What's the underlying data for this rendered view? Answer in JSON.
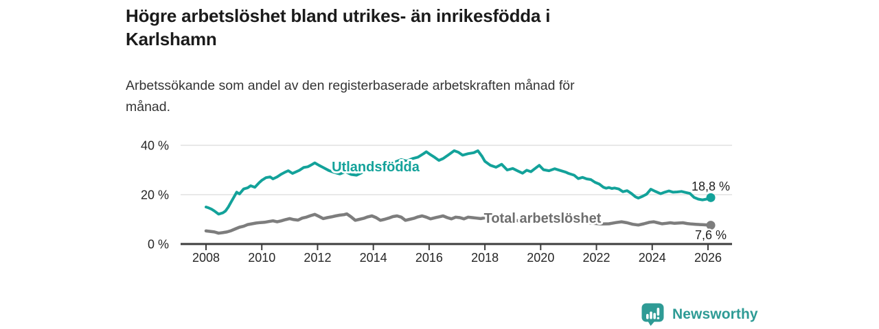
{
  "header": {
    "title_lines": [
      "Högre arbetslöshet bland utrikes- än inrikesfödda i",
      "Karlshamn"
    ],
    "subtitle_lines": [
      "Arbetssökande som andel av den registerbaserade arbetskraften månad för",
      "månad."
    ]
  },
  "chart_data": {
    "type": "line",
    "title": "Högre arbetslöshet bland utrikes- än inrikesfödda i Karlshamn",
    "subtitle": "Arbetssökande som andel av den registerbaserade arbetskraften månad för månad.",
    "xlabel": "",
    "ylabel": "",
    "y_unit": "%",
    "x_range_years": [
      2008,
      2026.1
    ],
    "ylim": [
      0,
      44
    ],
    "grid": "horizontal",
    "legend_position": "inline-labels",
    "y_ticks": [
      {
        "value": 0,
        "label": "0 %"
      },
      {
        "value": 20,
        "label": "20 %"
      },
      {
        "value": 40,
        "label": "40 %"
      }
    ],
    "x_ticks": [
      {
        "value": 2008,
        "label": "2008"
      },
      {
        "value": 2010,
        "label": "2010"
      },
      {
        "value": 2012,
        "label": "2012"
      },
      {
        "value": 2014,
        "label": "2014"
      },
      {
        "value": 2016,
        "label": "2016"
      },
      {
        "value": 2018,
        "label": "2018"
      },
      {
        "value": 2020,
        "label": "2020"
      },
      {
        "value": 2022,
        "label": "2022"
      },
      {
        "value": 2024,
        "label": "2024"
      },
      {
        "value": 2026,
        "label": "2026"
      }
    ],
    "series": [
      {
        "name": "Utlandsfödda",
        "color": "#13a29a",
        "label_color": "#13a29a",
        "line_width": 4,
        "end_value": 18.8,
        "end_label": "18,8 %",
        "points": [
          [
            2008.0,
            15.0
          ],
          [
            2008.1,
            14.6
          ],
          [
            2008.2,
            14.1
          ],
          [
            2008.3,
            13.4
          ],
          [
            2008.45,
            12.1
          ],
          [
            2008.6,
            12.6
          ],
          [
            2008.7,
            13.4
          ],
          [
            2008.8,
            15.0
          ],
          [
            2008.9,
            17.0
          ],
          [
            2009.0,
            19.0
          ],
          [
            2009.1,
            21.0
          ],
          [
            2009.2,
            20.3
          ],
          [
            2009.35,
            22.3
          ],
          [
            2009.5,
            22.8
          ],
          [
            2009.6,
            23.6
          ],
          [
            2009.75,
            23.0
          ],
          [
            2009.9,
            24.8
          ],
          [
            2010.0,
            25.8
          ],
          [
            2010.15,
            26.9
          ],
          [
            2010.3,
            27.2
          ],
          [
            2010.4,
            26.4
          ],
          [
            2010.55,
            27.2
          ],
          [
            2010.7,
            28.3
          ],
          [
            2010.85,
            29.2
          ],
          [
            2010.95,
            29.7
          ],
          [
            2011.1,
            28.6
          ],
          [
            2011.2,
            29.1
          ],
          [
            2011.35,
            29.9
          ],
          [
            2011.5,
            31.0
          ],
          [
            2011.65,
            31.3
          ],
          [
            2011.75,
            31.9
          ],
          [
            2011.9,
            32.9
          ],
          [
            2012.05,
            31.9
          ],
          [
            2012.2,
            31.0
          ],
          [
            2012.4,
            29.8
          ],
          [
            2012.6,
            29.0
          ],
          [
            2012.8,
            28.4
          ],
          [
            2013.0,
            29.3
          ],
          [
            2013.2,
            28.2
          ],
          [
            2013.4,
            27.9
          ],
          [
            2013.6,
            29.0
          ],
          [
            2013.8,
            30.0
          ],
          [
            2014.0,
            31.2
          ],
          [
            2014.2,
            30.6
          ],
          [
            2014.4,
            31.5
          ],
          [
            2014.6,
            32.4
          ],
          [
            2014.8,
            33.3
          ],
          [
            2015.0,
            34.2
          ],
          [
            2015.2,
            33.6
          ],
          [
            2015.4,
            34.6
          ],
          [
            2015.6,
            35.2
          ],
          [
            2015.8,
            36.6
          ],
          [
            2015.9,
            37.4
          ],
          [
            2016.05,
            36.2
          ],
          [
            2016.2,
            35.1
          ],
          [
            2016.35,
            33.9
          ],
          [
            2016.5,
            34.6
          ],
          [
            2016.7,
            36.2
          ],
          [
            2016.9,
            37.8
          ],
          [
            2017.05,
            37.2
          ],
          [
            2017.2,
            36.0
          ],
          [
            2017.4,
            36.6
          ],
          [
            2017.6,
            37.0
          ],
          [
            2017.75,
            37.8
          ],
          [
            2017.9,
            35.5
          ],
          [
            2018.0,
            33.5
          ],
          [
            2018.2,
            31.9
          ],
          [
            2018.4,
            31.1
          ],
          [
            2018.6,
            32.3
          ],
          [
            2018.8,
            30.0
          ],
          [
            2019.0,
            30.6
          ],
          [
            2019.2,
            29.5
          ],
          [
            2019.35,
            28.7
          ],
          [
            2019.5,
            29.9
          ],
          [
            2019.65,
            29.3
          ],
          [
            2019.8,
            30.6
          ],
          [
            2019.95,
            31.9
          ],
          [
            2020.1,
            30.1
          ],
          [
            2020.3,
            29.7
          ],
          [
            2020.5,
            30.5
          ],
          [
            2020.7,
            29.8
          ],
          [
            2020.9,
            29.1
          ],
          [
            2021.0,
            28.6
          ],
          [
            2021.2,
            27.9
          ],
          [
            2021.35,
            26.5
          ],
          [
            2021.5,
            27.0
          ],
          [
            2021.65,
            26.4
          ],
          [
            2021.8,
            26.1
          ],
          [
            2021.95,
            25.0
          ],
          [
            2022.1,
            24.3
          ],
          [
            2022.25,
            23.0
          ],
          [
            2022.35,
            22.6
          ],
          [
            2022.45,
            22.9
          ],
          [
            2022.55,
            22.5
          ],
          [
            2022.65,
            22.7
          ],
          [
            2022.8,
            22.3
          ],
          [
            2022.95,
            21.2
          ],
          [
            2023.1,
            21.6
          ],
          [
            2023.25,
            20.5
          ],
          [
            2023.4,
            19.1
          ],
          [
            2023.5,
            18.6
          ],
          [
            2023.65,
            19.3
          ],
          [
            2023.8,
            20.2
          ],
          [
            2023.95,
            22.2
          ],
          [
            2024.1,
            21.4
          ],
          [
            2024.3,
            20.4
          ],
          [
            2024.45,
            21.0
          ],
          [
            2024.6,
            21.5
          ],
          [
            2024.75,
            21.0
          ],
          [
            2024.9,
            21.1
          ],
          [
            2025.05,
            21.3
          ],
          [
            2025.2,
            20.9
          ],
          [
            2025.35,
            20.5
          ],
          [
            2025.5,
            18.9
          ],
          [
            2025.65,
            18.2
          ],
          [
            2025.8,
            17.9
          ],
          [
            2025.95,
            18.2
          ],
          [
            2026.1,
            18.8
          ]
        ]
      },
      {
        "name": "Total arbetslöshet",
        "color": "#7d7d7d",
        "label_color": "#6e6e6e",
        "line_width": 4.5,
        "end_value": 7.6,
        "end_label": "7,6 %",
        "points": [
          [
            2008.0,
            5.3
          ],
          [
            2008.15,
            5.1
          ],
          [
            2008.3,
            4.9
          ],
          [
            2008.45,
            4.4
          ],
          [
            2008.6,
            4.6
          ],
          [
            2008.75,
            4.9
          ],
          [
            2008.9,
            5.4
          ],
          [
            2009.05,
            6.1
          ],
          [
            2009.2,
            6.8
          ],
          [
            2009.35,
            7.2
          ],
          [
            2009.5,
            7.9
          ],
          [
            2009.65,
            8.2
          ],
          [
            2009.8,
            8.5
          ],
          [
            2009.95,
            8.7
          ],
          [
            2010.1,
            8.8
          ],
          [
            2010.25,
            9.1
          ],
          [
            2010.4,
            9.4
          ],
          [
            2010.55,
            9.0
          ],
          [
            2010.7,
            9.4
          ],
          [
            2010.85,
            9.9
          ],
          [
            2011.0,
            10.3
          ],
          [
            2011.15,
            9.9
          ],
          [
            2011.3,
            9.7
          ],
          [
            2011.45,
            10.5
          ],
          [
            2011.6,
            10.9
          ],
          [
            2011.75,
            11.5
          ],
          [
            2011.9,
            12.0
          ],
          [
            2012.05,
            11.2
          ],
          [
            2012.2,
            10.3
          ],
          [
            2012.35,
            10.7
          ],
          [
            2012.5,
            11.0
          ],
          [
            2012.65,
            11.4
          ],
          [
            2012.8,
            11.7
          ],
          [
            2012.95,
            11.9
          ],
          [
            2013.05,
            12.2
          ],
          [
            2013.2,
            11.0
          ],
          [
            2013.35,
            9.6
          ],
          [
            2013.5,
            10.0
          ],
          [
            2013.65,
            10.4
          ],
          [
            2013.8,
            11.0
          ],
          [
            2013.95,
            11.4
          ],
          [
            2014.1,
            10.7
          ],
          [
            2014.25,
            9.6
          ],
          [
            2014.4,
            10.0
          ],
          [
            2014.55,
            10.5
          ],
          [
            2014.7,
            11.1
          ],
          [
            2014.85,
            11.4
          ],
          [
            2015.0,
            10.9
          ],
          [
            2015.15,
            9.6
          ],
          [
            2015.3,
            10.0
          ],
          [
            2015.45,
            10.4
          ],
          [
            2015.6,
            11.0
          ],
          [
            2015.75,
            11.4
          ],
          [
            2015.9,
            10.9
          ],
          [
            2016.05,
            10.2
          ],
          [
            2016.2,
            10.6
          ],
          [
            2016.35,
            11.0
          ],
          [
            2016.5,
            11.4
          ],
          [
            2016.65,
            10.7
          ],
          [
            2016.8,
            10.2
          ],
          [
            2016.95,
            10.9
          ],
          [
            2017.1,
            10.7
          ],
          [
            2017.25,
            10.2
          ],
          [
            2017.4,
            10.9
          ],
          [
            2017.55,
            10.7
          ],
          [
            2017.7,
            10.5
          ],
          [
            2017.85,
            10.3
          ],
          [
            2018.0,
            10.6
          ],
          [
            2018.2,
            10.1
          ],
          [
            2018.4,
            9.8
          ],
          [
            2018.6,
            10.2
          ],
          [
            2018.8,
            9.6
          ],
          [
            2019.0,
            9.9
          ],
          [
            2019.2,
            9.4
          ],
          [
            2019.4,
            9.1
          ],
          [
            2019.6,
            9.5
          ],
          [
            2019.8,
            9.2
          ],
          [
            2020.0,
            9.6
          ],
          [
            2020.2,
            10.0
          ],
          [
            2020.4,
            9.7
          ],
          [
            2020.6,
            9.9
          ],
          [
            2020.8,
            9.5
          ],
          [
            2021.0,
            9.2
          ],
          [
            2021.2,
            8.9
          ],
          [
            2021.4,
            8.6
          ],
          [
            2021.6,
            8.8
          ],
          [
            2021.8,
            8.5
          ],
          [
            2022.0,
            8.3
          ],
          [
            2022.2,
            8.1
          ],
          [
            2022.45,
            8.2
          ],
          [
            2022.7,
            8.7
          ],
          [
            2022.9,
            9.0
          ],
          [
            2023.1,
            8.6
          ],
          [
            2023.3,
            8.0
          ],
          [
            2023.5,
            7.7
          ],
          [
            2023.7,
            8.2
          ],
          [
            2023.9,
            8.8
          ],
          [
            2024.05,
            9.0
          ],
          [
            2024.2,
            8.6
          ],
          [
            2024.35,
            8.2
          ],
          [
            2024.5,
            8.4
          ],
          [
            2024.65,
            8.6
          ],
          [
            2024.8,
            8.4
          ],
          [
            2024.95,
            8.5
          ],
          [
            2025.1,
            8.6
          ],
          [
            2025.25,
            8.3
          ],
          [
            2025.4,
            8.1
          ],
          [
            2025.55,
            8.0
          ],
          [
            2025.7,
            7.9
          ],
          [
            2025.85,
            7.8
          ],
          [
            2026.1,
            7.6
          ]
        ]
      }
    ]
  },
  "branding": {
    "logo_text": "Newsworthy",
    "logo_color": "#2e9b95",
    "logo_icon": "bar-chart-speech-bubble-icon"
  }
}
